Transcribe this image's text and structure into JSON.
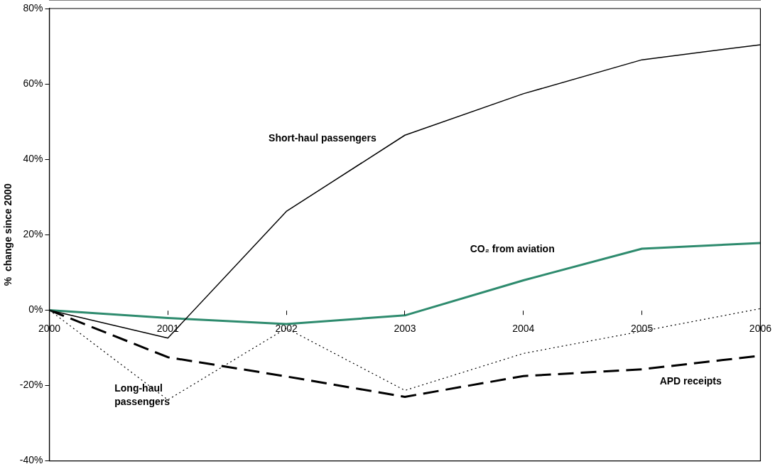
{
  "chart_data": {
    "type": "line",
    "ylabel": "%  change since 2000",
    "categories": [
      "2000",
      "2001",
      "2002",
      "2003",
      "2004",
      "2005",
      "2006"
    ],
    "series": [
      {
        "name": "Short-haul passengers",
        "color": "#000000",
        "line_style": "solid",
        "values": [
          0,
          -7.4,
          26.2,
          46.4,
          57.4,
          66.4,
          70.4
        ]
      },
      {
        "name": "CO₂ from aviation",
        "color": "#2e8b6e",
        "line_style": "solid",
        "values": [
          0,
          -2.1,
          -3.7,
          -1.4,
          7.9,
          16.3,
          17.8
        ]
      },
      {
        "name": "Long-haul passengers",
        "color": "#000000",
        "line_style": "dotted",
        "values": [
          0,
          -23.8,
          -4.8,
          -21.3,
          -11.5,
          -5.6,
          0.4
        ]
      },
      {
        "name": "APD receipts",
        "color": "#000000",
        "line_style": "dashed",
        "values": [
          0,
          -12.5,
          -17.6,
          -23.0,
          -17.5,
          -15.7,
          -12.1
        ]
      }
    ],
    "ylim": [
      -40,
      80
    ],
    "yticks": [
      {
        "value": -40,
        "label": "-40%"
      },
      {
        "value": -20,
        "label": "-20%"
      },
      {
        "value": 0,
        "label": "0%"
      },
      {
        "value": 20,
        "label": "20%"
      },
      {
        "value": 40,
        "label": "40%"
      },
      {
        "value": 60,
        "label": "60%"
      },
      {
        "value": 80,
        "label": "80%"
      }
    ],
    "grid": false,
    "legend": false,
    "marker": "none"
  }
}
